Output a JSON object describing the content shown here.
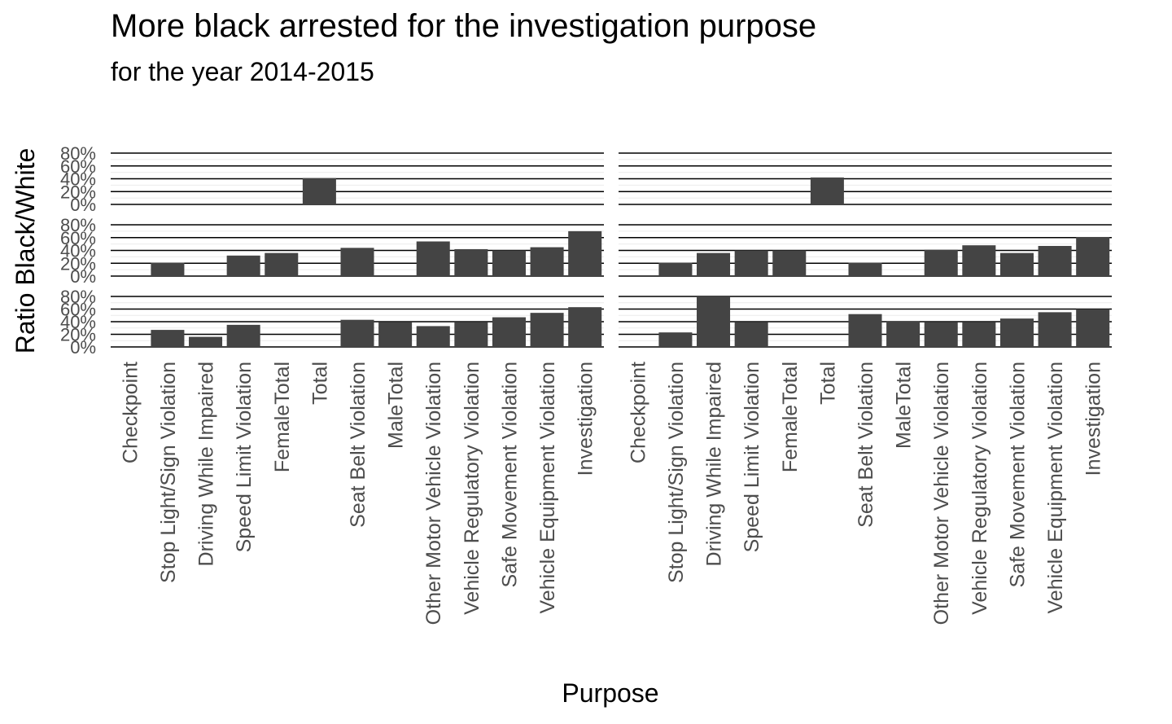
{
  "header": {
    "title": "More black arrested for the investigation purpose",
    "subtitle": "for the year 2014-2015"
  },
  "chart_data": {
    "type": "bar",
    "title": "More black arrested for the investigation purpose",
    "subtitle": "for the year 2014-2015",
    "xlabel": "Purpose",
    "ylabel": "Ratio Black/White",
    "ylim": [
      0,
      0.8
    ],
    "y_ticks": [
      "0%",
      "20%",
      "40%",
      "60%",
      "80%"
    ],
    "grid": true,
    "facet_layout": "3 rows x 2 columns",
    "bar_color": "#444444",
    "categories": [
      "Checkpoint",
      "Stop Light/Sign Violation",
      "Driving While Impaired",
      "Speed Limit Violation",
      "FemaleTotal",
      "Total",
      "Seat Belt Violation",
      "MaleTotal",
      "Other Motor Vehicle Violation",
      "Vehicle Regulatory Violation",
      "Safe Movement Violation",
      "Vehicle Equipment Violation",
      "Investigation"
    ],
    "panels": [
      {
        "row": 1,
        "col": 1,
        "values": [
          null,
          null,
          null,
          null,
          null,
          0.41,
          null,
          null,
          null,
          null,
          null,
          null,
          null
        ]
      },
      {
        "row": 1,
        "col": 2,
        "values": [
          null,
          null,
          null,
          null,
          null,
          0.42,
          null,
          null,
          null,
          null,
          null,
          null,
          null
        ]
      },
      {
        "row": 2,
        "col": 1,
        "values": [
          null,
          0.21,
          null,
          0.32,
          0.36,
          null,
          0.44,
          null,
          0.54,
          0.42,
          0.4,
          0.45,
          0.7
        ]
      },
      {
        "row": 2,
        "col": 2,
        "values": [
          null,
          0.21,
          0.36,
          0.4,
          0.4,
          null,
          0.21,
          null,
          0.41,
          0.48,
          0.36,
          0.47,
          0.61
        ]
      },
      {
        "row": 3,
        "col": 1,
        "values": [
          null,
          0.27,
          0.16,
          0.35,
          null,
          null,
          0.43,
          0.39,
          0.33,
          0.39,
          0.47,
          0.54,
          0.63
        ]
      },
      {
        "row": 3,
        "col": 2,
        "values": [
          null,
          0.23,
          0.8,
          0.39,
          null,
          null,
          0.52,
          0.41,
          0.39,
          0.39,
          0.45,
          0.55,
          0.6
        ]
      }
    ]
  }
}
